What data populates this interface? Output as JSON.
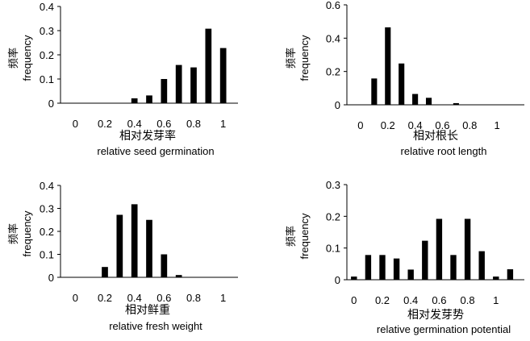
{
  "chart_data": [
    {
      "id": "seed-germination",
      "type": "bar",
      "ylabel_cn": "频率",
      "ylabel_en": "frequency",
      "xlabel_cn": "相对发芽率",
      "xlabel_en": "relative seed germination",
      "xlim": [
        -0.1,
        1.1
      ],
      "ylim": [
        0,
        0.4
      ],
      "xticks": [
        "0",
        "0.2",
        "0.4",
        "0.6",
        "0.8",
        "1"
      ],
      "xtick_values": [
        0,
        0.2,
        0.4,
        0.6,
        0.8,
        1.0
      ],
      "yticks": [
        "0",
        "0.1",
        "0.2",
        "0.3",
        "0.4"
      ],
      "ytick_values": [
        0,
        0.1,
        0.2,
        0.3,
        0.4
      ],
      "x": [
        0.4,
        0.5,
        0.6,
        0.7,
        0.8,
        0.9,
        1.0
      ],
      "values": [
        0.02,
        0.032,
        0.1,
        0.158,
        0.148,
        0.308,
        0.228
      ]
    },
    {
      "id": "root-length",
      "type": "bar",
      "ylabel_cn": "频率",
      "ylabel_en": "frequency",
      "xlabel_cn": "相对根长",
      "xlabel_en": "relative root length",
      "xlim": [
        -0.1,
        1.2
      ],
      "ylim": [
        0,
        0.6
      ],
      "xticks": [
        "0",
        "0.2",
        "0.4",
        "0.6",
        "0.8",
        "1"
      ],
      "xtick_values": [
        0,
        0.2,
        0.4,
        0.6,
        0.8,
        1.0
      ],
      "yticks": [
        "0",
        "0.2",
        "0.4",
        "0.6"
      ],
      "ytick_values": [
        0,
        0.2,
        0.4,
        0.6
      ],
      "x": [
        0.1,
        0.2,
        0.3,
        0.4,
        0.5,
        0.7
      ],
      "values": [
        0.158,
        0.465,
        0.248,
        0.065,
        0.042,
        0.01
      ]
    },
    {
      "id": "fresh-weight",
      "type": "bar",
      "ylabel_cn": "频率",
      "ylabel_en": "frequency",
      "xlabel_cn": "相对鲜重",
      "xlabel_en": "relative fresh weight",
      "xlim": [
        -0.1,
        1.1
      ],
      "ylim": [
        0,
        0.4
      ],
      "xticks": [
        "0",
        "0.2",
        "0.4",
        "0.6",
        "0.8",
        "1"
      ],
      "xtick_values": [
        0,
        0.2,
        0.4,
        0.6,
        0.8,
        1.0
      ],
      "yticks": [
        "0",
        "0.1",
        "0.2",
        "0.3",
        "0.4"
      ],
      "ytick_values": [
        0,
        0.1,
        0.2,
        0.3,
        0.4
      ],
      "x": [
        0.2,
        0.3,
        0.4,
        0.5,
        0.6,
        0.7
      ],
      "values": [
        0.045,
        0.272,
        0.318,
        0.25,
        0.1,
        0.01
      ]
    },
    {
      "id": "germination-potential",
      "type": "bar",
      "ylabel_cn": "频率",
      "ylabel_en": "frequency",
      "xlabel_cn": "相对发芽势",
      "xlabel_en": "relative germination potential",
      "xlim": [
        -0.05,
        1.2
      ],
      "ylim": [
        0,
        0.3
      ],
      "xticks": [
        "0",
        "0.2",
        "0.4",
        "0.6",
        "0.8",
        "1"
      ],
      "xtick_values": [
        0,
        0.2,
        0.4,
        0.6,
        0.8,
        1.0
      ],
      "yticks": [
        "0",
        "0.1",
        "0.2",
        "0.3"
      ],
      "ytick_values": [
        0,
        0.1,
        0.2,
        0.3
      ],
      "x": [
        0,
        0.1,
        0.2,
        0.3,
        0.4,
        0.5,
        0.6,
        0.7,
        0.8,
        0.9,
        1.0,
        1.1
      ],
      "values": [
        0.01,
        0.078,
        0.078,
        0.067,
        0.032,
        0.123,
        0.192,
        0.078,
        0.192,
        0.09,
        0.01,
        0.033
      ]
    }
  ]
}
